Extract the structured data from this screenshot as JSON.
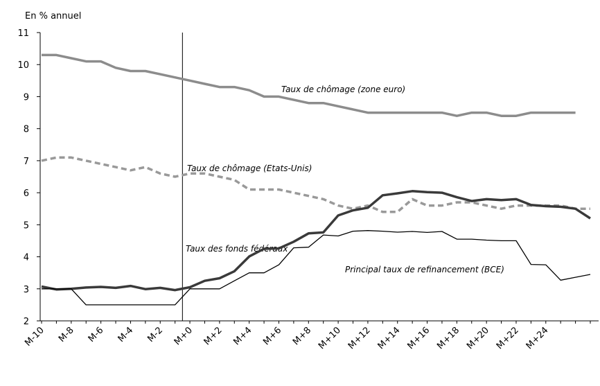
{
  "chart_data": {
    "type": "line",
    "y_label": "En % annuel",
    "categories": [
      "M-10",
      null,
      "M-8",
      null,
      "M-6",
      null,
      "M-4",
      null,
      "M-2",
      null,
      "M+0",
      null,
      "M+2",
      null,
      "M+4",
      null,
      "M+6",
      null,
      "M+8",
      null,
      "M+10",
      null,
      "M+12",
      null,
      "M+14",
      null,
      "M+16",
      null,
      "M+18",
      null,
      "M+20",
      null,
      "M+22",
      null,
      "M+24",
      null,
      null,
      null
    ],
    "ylim": [
      2,
      11
    ],
    "yticks": [
      2,
      3,
      4,
      5,
      6,
      7,
      8,
      9,
      10,
      11
    ],
    "grid": false,
    "series": [
      {
        "name": "Taux de chômage (zone euro)",
        "color": "#8c8c8c",
        "width": 3.5,
        "dashed": false,
        "values": [
          10.3,
          10.3,
          10.2,
          10.1,
          10.1,
          9.9,
          9.8,
          9.8,
          9.7,
          9.6,
          9.5,
          9.4,
          9.3,
          9.3,
          9.2,
          9.0,
          9.0,
          8.9,
          8.8,
          8.8,
          8.7,
          8.6,
          8.5,
          8.5,
          8.5,
          8.5,
          8.5,
          8.5,
          8.4,
          8.5,
          8.5,
          8.4,
          8.4,
          8.5,
          8.5,
          8.5,
          8.5,
          null
        ]
      },
      {
        "name": "Taux de chômage (Etats-Unis)",
        "color": "#999999",
        "width": 3.5,
        "dashed": true,
        "values": [
          7.0,
          7.1,
          7.1,
          7.0,
          6.9,
          6.8,
          6.7,
          6.8,
          6.6,
          6.5,
          6.6,
          6.6,
          6.5,
          6.4,
          6.1,
          6.1,
          6.1,
          6.0,
          5.9,
          5.8,
          5.6,
          5.5,
          5.6,
          5.4,
          5.4,
          5.8,
          5.6,
          5.6,
          5.7,
          5.7,
          5.6,
          5.5,
          5.6,
          5.6,
          5.6,
          5.6,
          5.5,
          5.5
        ]
      },
      {
        "name": "Taux des fonds fédéraux",
        "color": "#3a3a3a",
        "width": 3.5,
        "dashed": false,
        "values": [
          3.07,
          2.98,
          3.0,
          3.04,
          3.06,
          3.03,
          3.09,
          2.99,
          3.03,
          2.96,
          3.05,
          3.25,
          3.33,
          3.55,
          4.01,
          4.25,
          4.26,
          4.47,
          4.73,
          4.76,
          5.29,
          5.45,
          5.53,
          5.92,
          5.98,
          6.05,
          6.02,
          6.0,
          5.86,
          5.74,
          5.8,
          5.77,
          5.8,
          5.62,
          5.58,
          5.56,
          5.5,
          5.2
        ]
      },
      {
        "name": "Principal taux de refinancement  (BCE)",
        "color": "#000000",
        "width": 1.3,
        "dashed": false,
        "values": [
          3.0,
          3.0,
          3.0,
          2.5,
          2.5,
          2.5,
          2.5,
          2.5,
          2.5,
          2.5,
          3.0,
          3.0,
          3.0,
          3.25,
          3.5,
          3.5,
          3.75,
          4.28,
          4.3,
          4.68,
          4.65,
          4.8,
          4.82,
          4.8,
          4.77,
          4.79,
          4.76,
          4.79,
          4.55,
          4.55,
          4.52,
          4.5,
          4.5,
          3.76,
          3.75,
          3.27,
          3.36,
          3.45
        ]
      }
    ]
  }
}
